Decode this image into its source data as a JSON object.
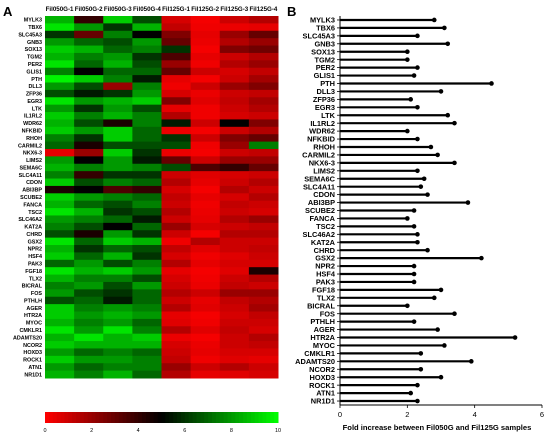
{
  "panels": {
    "a_label": "A",
    "b_label": "B"
  },
  "genes": [
    "MYLK3",
    "TBX6",
    "SLC45A3",
    "GNB3",
    "SOX13",
    "TGM2",
    "PER2",
    "GLIS1",
    "PTH",
    "DLL3",
    "ZFP36",
    "EGR3",
    "LTK",
    "IL1RL2",
    "WDR62",
    "NFKBID",
    "RHOH",
    "CARMIL2",
    "NKX6-3",
    "LIMS2",
    "SEMA6C",
    "SLC4A11",
    "CDON",
    "ABI3BP",
    "SCUBE2",
    "FANCA",
    "TSC2",
    "SLC46A2",
    "KAT2A",
    "CHRD",
    "GSX2",
    "NPR2",
    "HSF4",
    "PAK3",
    "FGF18",
    "TLX2",
    "BICRAL",
    "FOS",
    "PTHLH",
    "AGER",
    "HTR2A",
    "MYOC",
    "CMKLR1",
    "ADAMTS20",
    "NCOR2",
    "HOXD3",
    "ROCK1",
    "ATN1",
    "NR1D1"
  ],
  "colors": {
    "low": "#ff0000",
    "mid": "#000000",
    "high": "#00ff00",
    "bar": "#000000"
  },
  "chart_data": [
    {
      "type": "heatmap",
      "columns": [
        "Fil050G-1",
        "Fil050G-2",
        "Fil050G-3",
        "Fil050G-4",
        "Fil125G-1",
        "Fil125G-2",
        "Fil125G-3",
        "Fil125G-4"
      ],
      "rows_ref": "genes",
      "value_range": [
        0,
        10
      ],
      "colorbar_ticks": [
        0,
        2,
        4,
        6,
        8,
        10
      ],
      "values": [
        [
          8.5,
          4.0,
          9.0,
          6.5,
          0.8,
          0.2,
          1.0,
          1.5
        ],
        [
          9.5,
          8.0,
          6.0,
          8.5,
          1.2,
          0.3,
          0.4,
          0.5
        ],
        [
          6.0,
          3.0,
          7.5,
          5.0,
          2.5,
          0.5,
          2.0,
          3.0
        ],
        [
          8.0,
          7.0,
          6.5,
          8.0,
          3.0,
          0.4,
          1.5,
          2.0
        ],
        [
          9.0,
          8.5,
          7.0,
          7.5,
          6.0,
          0.2,
          2.5,
          2.8
        ],
        [
          8.5,
          7.5,
          8.0,
          6.0,
          3.5,
          0.5,
          1.0,
          1.5
        ],
        [
          9.5,
          7.0,
          8.5,
          6.5,
          2.0,
          0.3,
          1.5,
          2.0
        ],
        [
          7.5,
          5.0,
          7.0,
          7.0,
          3.0,
          1.0,
          0.8,
          1.2
        ],
        [
          9.8,
          9.0,
          7.5,
          5.5,
          0.5,
          0.2,
          1.0,
          1.8
        ],
        [
          8.0,
          6.5,
          2.0,
          7.5,
          0.3,
          1.0,
          2.0,
          2.5
        ],
        [
          6.5,
          5.5,
          6.0,
          8.0,
          0.8,
          0.4,
          1.0,
          1.2
        ],
        [
          9.5,
          8.0,
          8.5,
          9.0,
          2.5,
          0.6,
          1.2,
          1.8
        ],
        [
          8.0,
          6.0,
          8.0,
          6.5,
          0.5,
          0.3,
          1.0,
          1.5
        ],
        [
          9.0,
          7.5,
          8.5,
          7.5,
          1.5,
          0.3,
          0.8,
          1.0
        ],
        [
          8.5,
          6.5,
          4.5,
          7.5,
          5.5,
          1.0,
          5.0,
          2.5
        ],
        [
          9.0,
          8.0,
          9.0,
          7.0,
          0.4,
          0.2,
          1.0,
          1.5
        ],
        [
          7.5,
          6.0,
          9.0,
          7.0,
          6.0,
          1.0,
          2.5,
          3.0
        ],
        [
          7.0,
          4.5,
          6.5,
          6.5,
          6.5,
          0.3,
          2.0,
          7.5
        ],
        [
          0.5,
          2.0,
          9.0,
          6.0,
          0.4,
          0.2,
          1.0,
          1.2
        ],
        [
          8.0,
          5.0,
          8.0,
          5.5,
          3.0,
          1.0,
          2.0,
          2.0
        ],
        [
          8.5,
          7.5,
          8.0,
          7.5,
          6.5,
          3.5,
          4.0,
          3.0
        ],
        [
          7.5,
          4.0,
          6.0,
          6.0,
          1.0,
          0.6,
          0.8,
          1.0
        ],
        [
          9.0,
          6.5,
          7.5,
          7.0,
          1.5,
          0.5,
          1.0,
          1.5
        ],
        [
          4.5,
          5.0,
          3.5,
          4.0,
          0.8,
          0.2,
          1.5,
          1.0
        ],
        [
          9.0,
          8.0,
          7.5,
          7.0,
          1.2,
          0.5,
          0.8,
          1.5
        ],
        [
          8.5,
          7.0,
          6.5,
          7.5,
          1.0,
          0.3,
          1.2,
          1.0
        ],
        [
          9.5,
          8.5,
          6.0,
          6.5,
          1.5,
          0.4,
          1.0,
          0.8
        ],
        [
          8.0,
          7.5,
          7.0,
          5.5,
          1.0,
          0.5,
          1.5,
          2.0
        ],
        [
          7.5,
          6.5,
          5.0,
          7.0,
          2.0,
          0.8,
          1.0,
          1.2
        ],
        [
          6.5,
          4.5,
          8.0,
          6.0,
          1.0,
          0.2,
          1.5,
          1.5
        ],
        [
          9.5,
          7.0,
          9.0,
          8.5,
          0.3,
          1.5,
          1.0,
          1.0
        ],
        [
          8.5,
          6.0,
          7.0,
          6.5,
          1.2,
          0.6,
          1.0,
          1.2
        ],
        [
          9.0,
          7.0,
          8.5,
          6.0,
          0.8,
          0.3,
          0.6,
          1.0
        ],
        [
          7.0,
          8.0,
          6.5,
          7.5,
          1.5,
          0.5,
          0.8,
          0.8
        ],
        [
          9.5,
          8.5,
          9.0,
          8.0,
          0.5,
          0.2,
          0.6,
          4.5
        ],
        [
          8.5,
          7.5,
          7.5,
          6.5,
          0.8,
          0.3,
          1.0,
          1.5
        ],
        [
          7.5,
          8.0,
          6.5,
          8.0,
          1.0,
          0.4,
          1.2,
          1.0
        ],
        [
          8.0,
          6.5,
          6.0,
          7.0,
          1.5,
          1.0,
          2.0,
          2.0
        ],
        [
          6.5,
          7.0,
          5.5,
          7.0,
          1.0,
          0.5,
          1.2,
          1.5
        ],
        [
          9.0,
          7.5,
          8.0,
          7.5,
          1.5,
          0.6,
          1.0,
          1.8
        ],
        [
          9.0,
          8.0,
          8.5,
          8.0,
          0.5,
          0.2,
          0.8,
          1.2
        ],
        [
          8.5,
          7.5,
          8.0,
          7.0,
          0.6,
          0.3,
          1.0,
          1.0
        ],
        [
          9.5,
          8.0,
          9.5,
          7.5,
          1.5,
          0.6,
          1.2,
          0.8
        ],
        [
          8.5,
          9.5,
          8.5,
          9.0,
          0.4,
          0.2,
          1.0,
          1.5
        ],
        [
          9.0,
          8.5,
          8.5,
          8.5,
          0.8,
          0.4,
          1.0,
          1.2
        ],
        [
          8.0,
          7.0,
          7.5,
          7.0,
          1.0,
          0.5,
          0.8,
          0.8
        ],
        [
          9.0,
          8.0,
          8.0,
          7.5,
          1.2,
          0.3,
          0.6,
          0.5
        ],
        [
          8.0,
          7.0,
          7.5,
          7.5,
          2.0,
          1.0,
          1.5,
          1.0
        ],
        [
          8.5,
          7.5,
          8.5,
          7.0,
          1.5,
          0.5,
          0.6,
          0.8
        ]
      ]
    },
    {
      "type": "bar",
      "orientation": "horizontal",
      "categories_ref": "genes",
      "values": [
        2.8,
        3.1,
        2.3,
        3.2,
        2.0,
        2.0,
        2.3,
        2.2,
        4.5,
        3.0,
        2.1,
        2.3,
        3.2,
        3.4,
        2.0,
        2.3,
        2.7,
        2.9,
        3.4,
        2.3,
        2.5,
        2.4,
        2.6,
        3.8,
        2.2,
        2.0,
        2.2,
        2.3,
        2.3,
        2.6,
        4.2,
        2.2,
        2.2,
        2.2,
        3.0,
        2.8,
        2.0,
        3.4,
        2.2,
        2.9,
        5.2,
        3.1,
        2.4,
        3.9,
        2.4,
        3.0,
        2.3,
        2.1,
        2.3
      ],
      "xlabel": "Fold increase between Fil050G and Fil125G samples",
      "xticks": [
        0,
        2,
        4,
        6
      ],
      "xlim": [
        0,
        6
      ]
    }
  ]
}
